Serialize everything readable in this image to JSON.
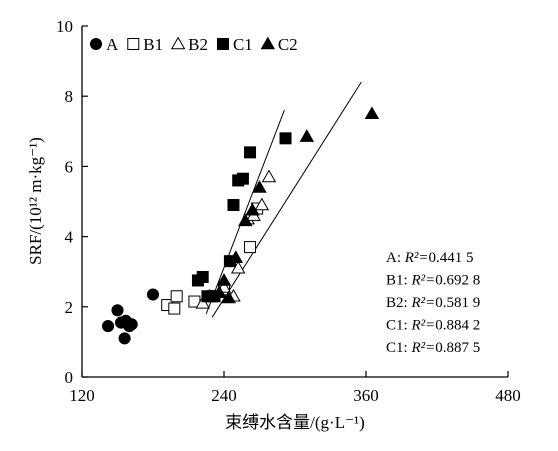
{
  "chart_data": {
    "type": "scatter",
    "title": "",
    "xlabel": "束缚水含量/(g·L⁻¹)",
    "ylabel": "SRF/(10¹² m·kg⁻¹)",
    "xlim": [
      120,
      480
    ],
    "ylim": [
      0,
      10
    ],
    "xticks": [
      "120",
      "240",
      "360",
      "480"
    ],
    "yticks": [
      "0",
      "2",
      "4",
      "6",
      "8",
      "10"
    ],
    "grid": false,
    "legend": {
      "placement": "top",
      "entries": [
        {
          "label": "A",
          "marker": "filled-circle"
        },
        {
          "label": "B1",
          "marker": "open-square"
        },
        {
          "label": "B2",
          "marker": "open-triangle"
        },
        {
          "label": "C1",
          "marker": "filled-square"
        },
        {
          "label": "C2",
          "marker": "filled-triangle"
        }
      ]
    },
    "series": [
      {
        "name": "A",
        "marker": "filled-circle",
        "points": [
          [
            142,
            1.45
          ],
          [
            150,
            1.9
          ],
          [
            153,
            1.55
          ],
          [
            156,
            1.1
          ],
          [
            157,
            1.6
          ],
          [
            160,
            1.45
          ],
          [
            162,
            1.5
          ],
          [
            180,
            2.35
          ]
        ]
      },
      {
        "name": "B1",
        "marker": "open-square",
        "points": [
          [
            192,
            2.05
          ],
          [
            198,
            1.95
          ],
          [
            200,
            2.3
          ],
          [
            215,
            2.15
          ],
          [
            230,
            2.3
          ],
          [
            240,
            2.5
          ],
          [
            262,
            3.7
          ],
          [
            268,
            4.8
          ]
        ]
      },
      {
        "name": "B2",
        "marker": "open-triangle",
        "points": [
          [
            222,
            2.1
          ],
          [
            228,
            2.3
          ],
          [
            240,
            2.55
          ],
          [
            248,
            2.3
          ],
          [
            252,
            3.1
          ],
          [
            260,
            4.5
          ],
          [
            265,
            4.6
          ],
          [
            272,
            4.9
          ],
          [
            278,
            5.7
          ]
        ]
      },
      {
        "name": "C1",
        "marker": "filled-square",
        "points": [
          [
            218,
            2.75
          ],
          [
            222,
            2.85
          ],
          [
            226,
            2.3
          ],
          [
            232,
            2.3
          ],
          [
            245,
            3.3
          ],
          [
            248,
            4.9
          ],
          [
            252,
            5.6
          ],
          [
            256,
            5.65
          ],
          [
            262,
            6.4
          ],
          [
            292,
            6.8
          ]
        ]
      },
      {
        "name": "C2",
        "marker": "filled-triangle",
        "points": [
          [
            236,
            2.4
          ],
          [
            240,
            2.75
          ],
          [
            244,
            2.25
          ],
          [
            250,
            3.4
          ],
          [
            258,
            4.45
          ],
          [
            264,
            4.75
          ],
          [
            270,
            5.4
          ],
          [
            310,
            6.85
          ],
          [
            365,
            7.5
          ]
        ]
      }
    ],
    "trendlines": [
      {
        "from": [
          225,
          1.8
        ],
        "to": [
          291,
          7.6
        ]
      },
      {
        "from": [
          230,
          1.7
        ],
        "to": [
          356,
          8.4
        ]
      }
    ],
    "annotations": [
      {
        "label": "A:",
        "value": "0.441 5"
      },
      {
        "label": "B1:",
        "value": "0.692 8"
      },
      {
        "label": "B2:",
        "value": "0.581 9"
      },
      {
        "label": "C1:",
        "value": "0.884 2"
      },
      {
        "label": "C1:",
        "value": "0.887 5"
      }
    ],
    "r2_symbol": "R²="
  }
}
